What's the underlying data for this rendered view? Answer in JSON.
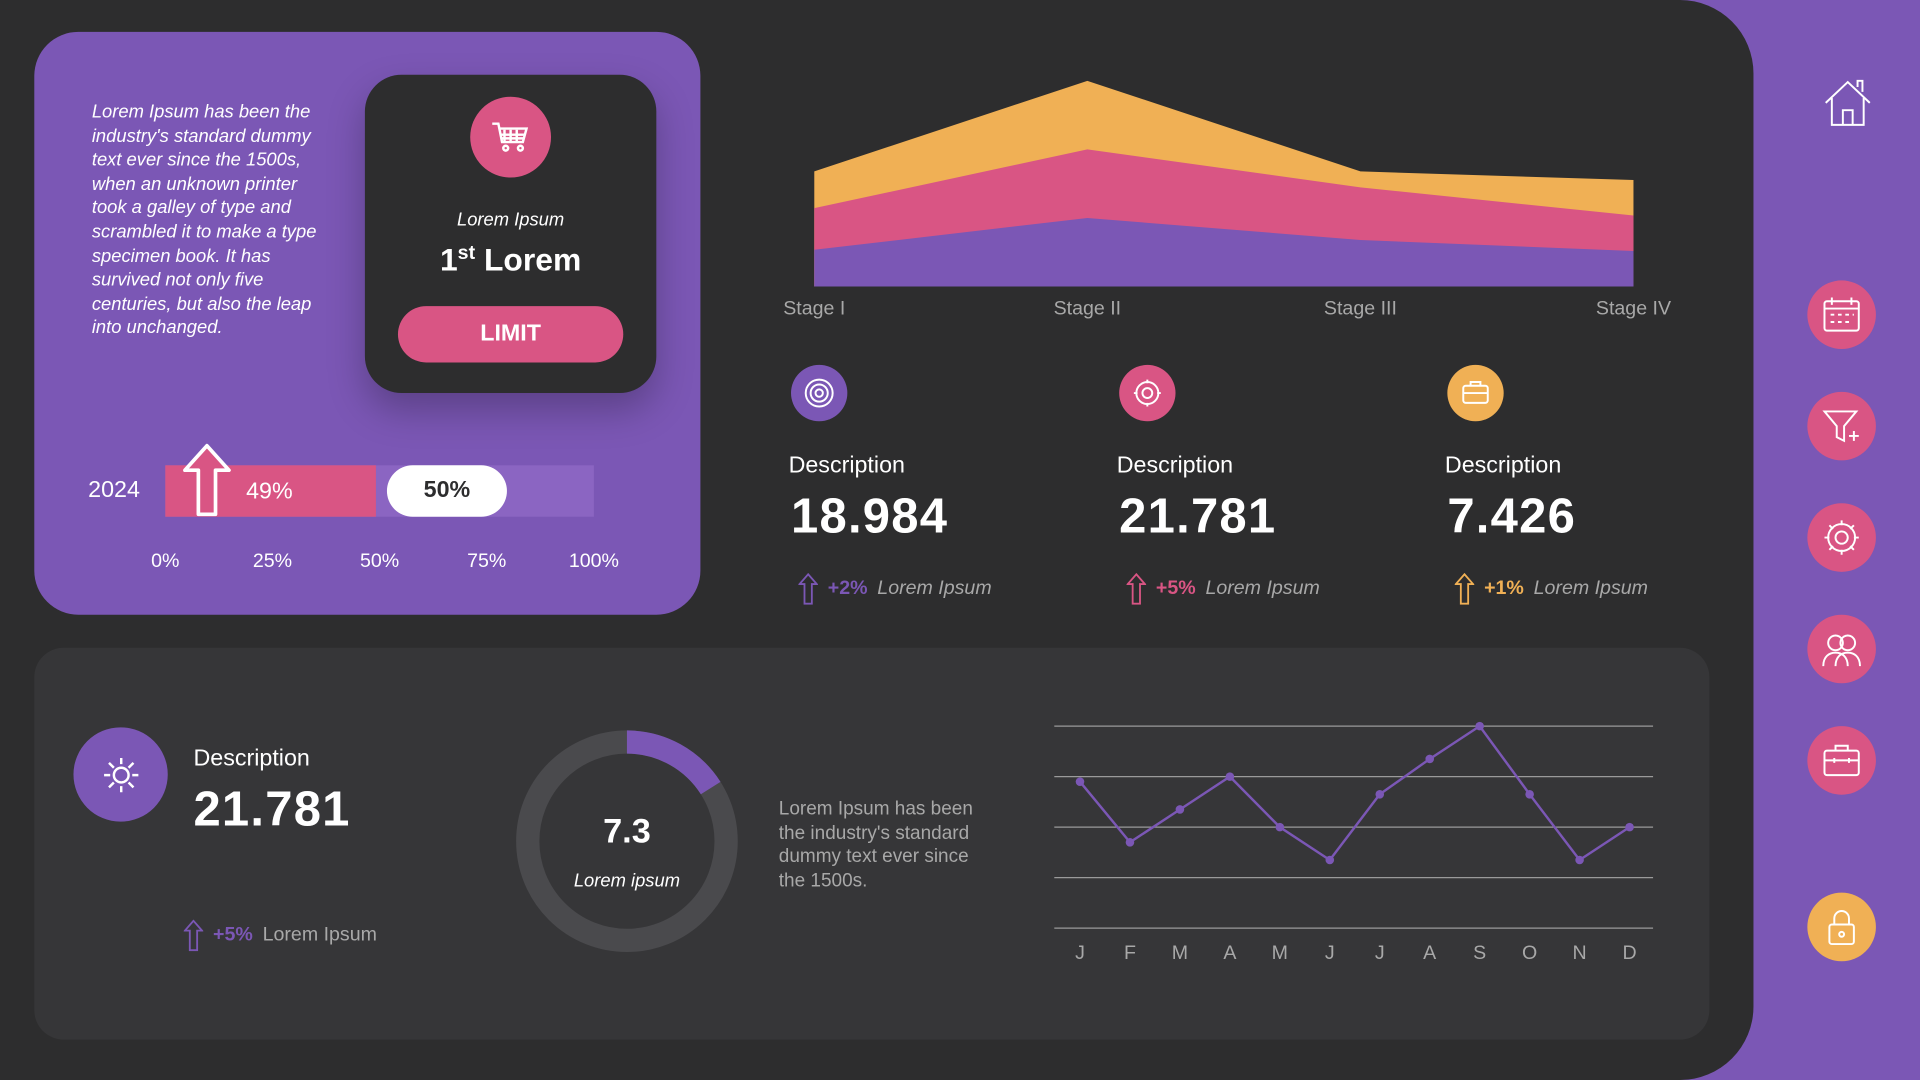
{
  "colors": {
    "purple": "#7b57b5",
    "pink": "#d95584",
    "orange": "#f0b055",
    "dark": "#2d2d2e"
  },
  "intro_text": "Lorem Ipsum has been the industry's standard dummy text ever since the 1500s, when an unknown printer took a galley of type and scrambled it to make a type specimen book. It has survived not only five centuries, but also the leap into unchanged.",
  "rank_card": {
    "icon": "cart-icon",
    "subtitle": "Lorem Ipsum",
    "title_num": "1",
    "title_sup": "st",
    "title_word": "Lorem",
    "button": "LIMIT"
  },
  "progress": {
    "year": "2024",
    "value_pct": 49,
    "value_label": "49%",
    "marker_pct": 50,
    "marker_label": "50%",
    "ticks": [
      "0%",
      "25%",
      "50%",
      "75%",
      "100%"
    ]
  },
  "chart_data": [
    {
      "type": "area",
      "stacked": true,
      "categories": [
        "Stage I",
        "Stage II",
        "Stage III",
        "Stage IV"
      ],
      "series": [
        {
          "color": "#7b57b5",
          "values": [
            30,
            56,
            38,
            29
          ]
        },
        {
          "color": "#d95584",
          "values": [
            34,
            56,
            43,
            29
          ]
        },
        {
          "color": "#f0b055",
          "values": [
            30,
            56,
            13,
            29
          ]
        }
      ]
    },
    {
      "type": "line",
      "categories": [
        "J",
        "F",
        "M",
        "A",
        "M",
        "J",
        "J",
        "A",
        "S",
        "O",
        "N",
        "D"
      ],
      "values": [
        2.9,
        1.7,
        2.35,
        3.0,
        2.0,
        1.35,
        2.65,
        3.35,
        4.0,
        2.65,
        1.35,
        2.0
      ],
      "ylim": [
        0,
        4
      ],
      "grid": true,
      "color": "#7b57b5"
    },
    {
      "type": "pie",
      "variant": "donut",
      "value_label": "7.3",
      "caption": "Lorem ipsum",
      "fraction": 0.16,
      "color": "#7b57b5"
    }
  ],
  "kpis": [
    {
      "icon": "target-icon",
      "color": "#7b57b5",
      "label": "Description",
      "value": "18.984",
      "change": "+2%",
      "change_label": "Lorem Ipsum"
    },
    {
      "icon": "gear-icon",
      "color": "#d95584",
      "label": "Description",
      "value": "21.781",
      "change": "+5%",
      "change_label": "Lorem Ipsum"
    },
    {
      "icon": "briefcase-icon",
      "color": "#f0b055",
      "label": "Description",
      "value": "7.426",
      "change": "+1%",
      "change_label": "Lorem Ipsum"
    }
  ],
  "bottom": {
    "label": "Description",
    "value": "21.781",
    "change": "+5%",
    "change_label": "Lorem Ipsum",
    "text": "Lorem Ipsum has been the industry's standard dummy text ever since the 1500s."
  },
  "sidebar": [
    "home-icon",
    "calendar-icon",
    "funnel-icon",
    "gear-icon",
    "users-icon",
    "briefcase-icon",
    "lock-icon"
  ]
}
